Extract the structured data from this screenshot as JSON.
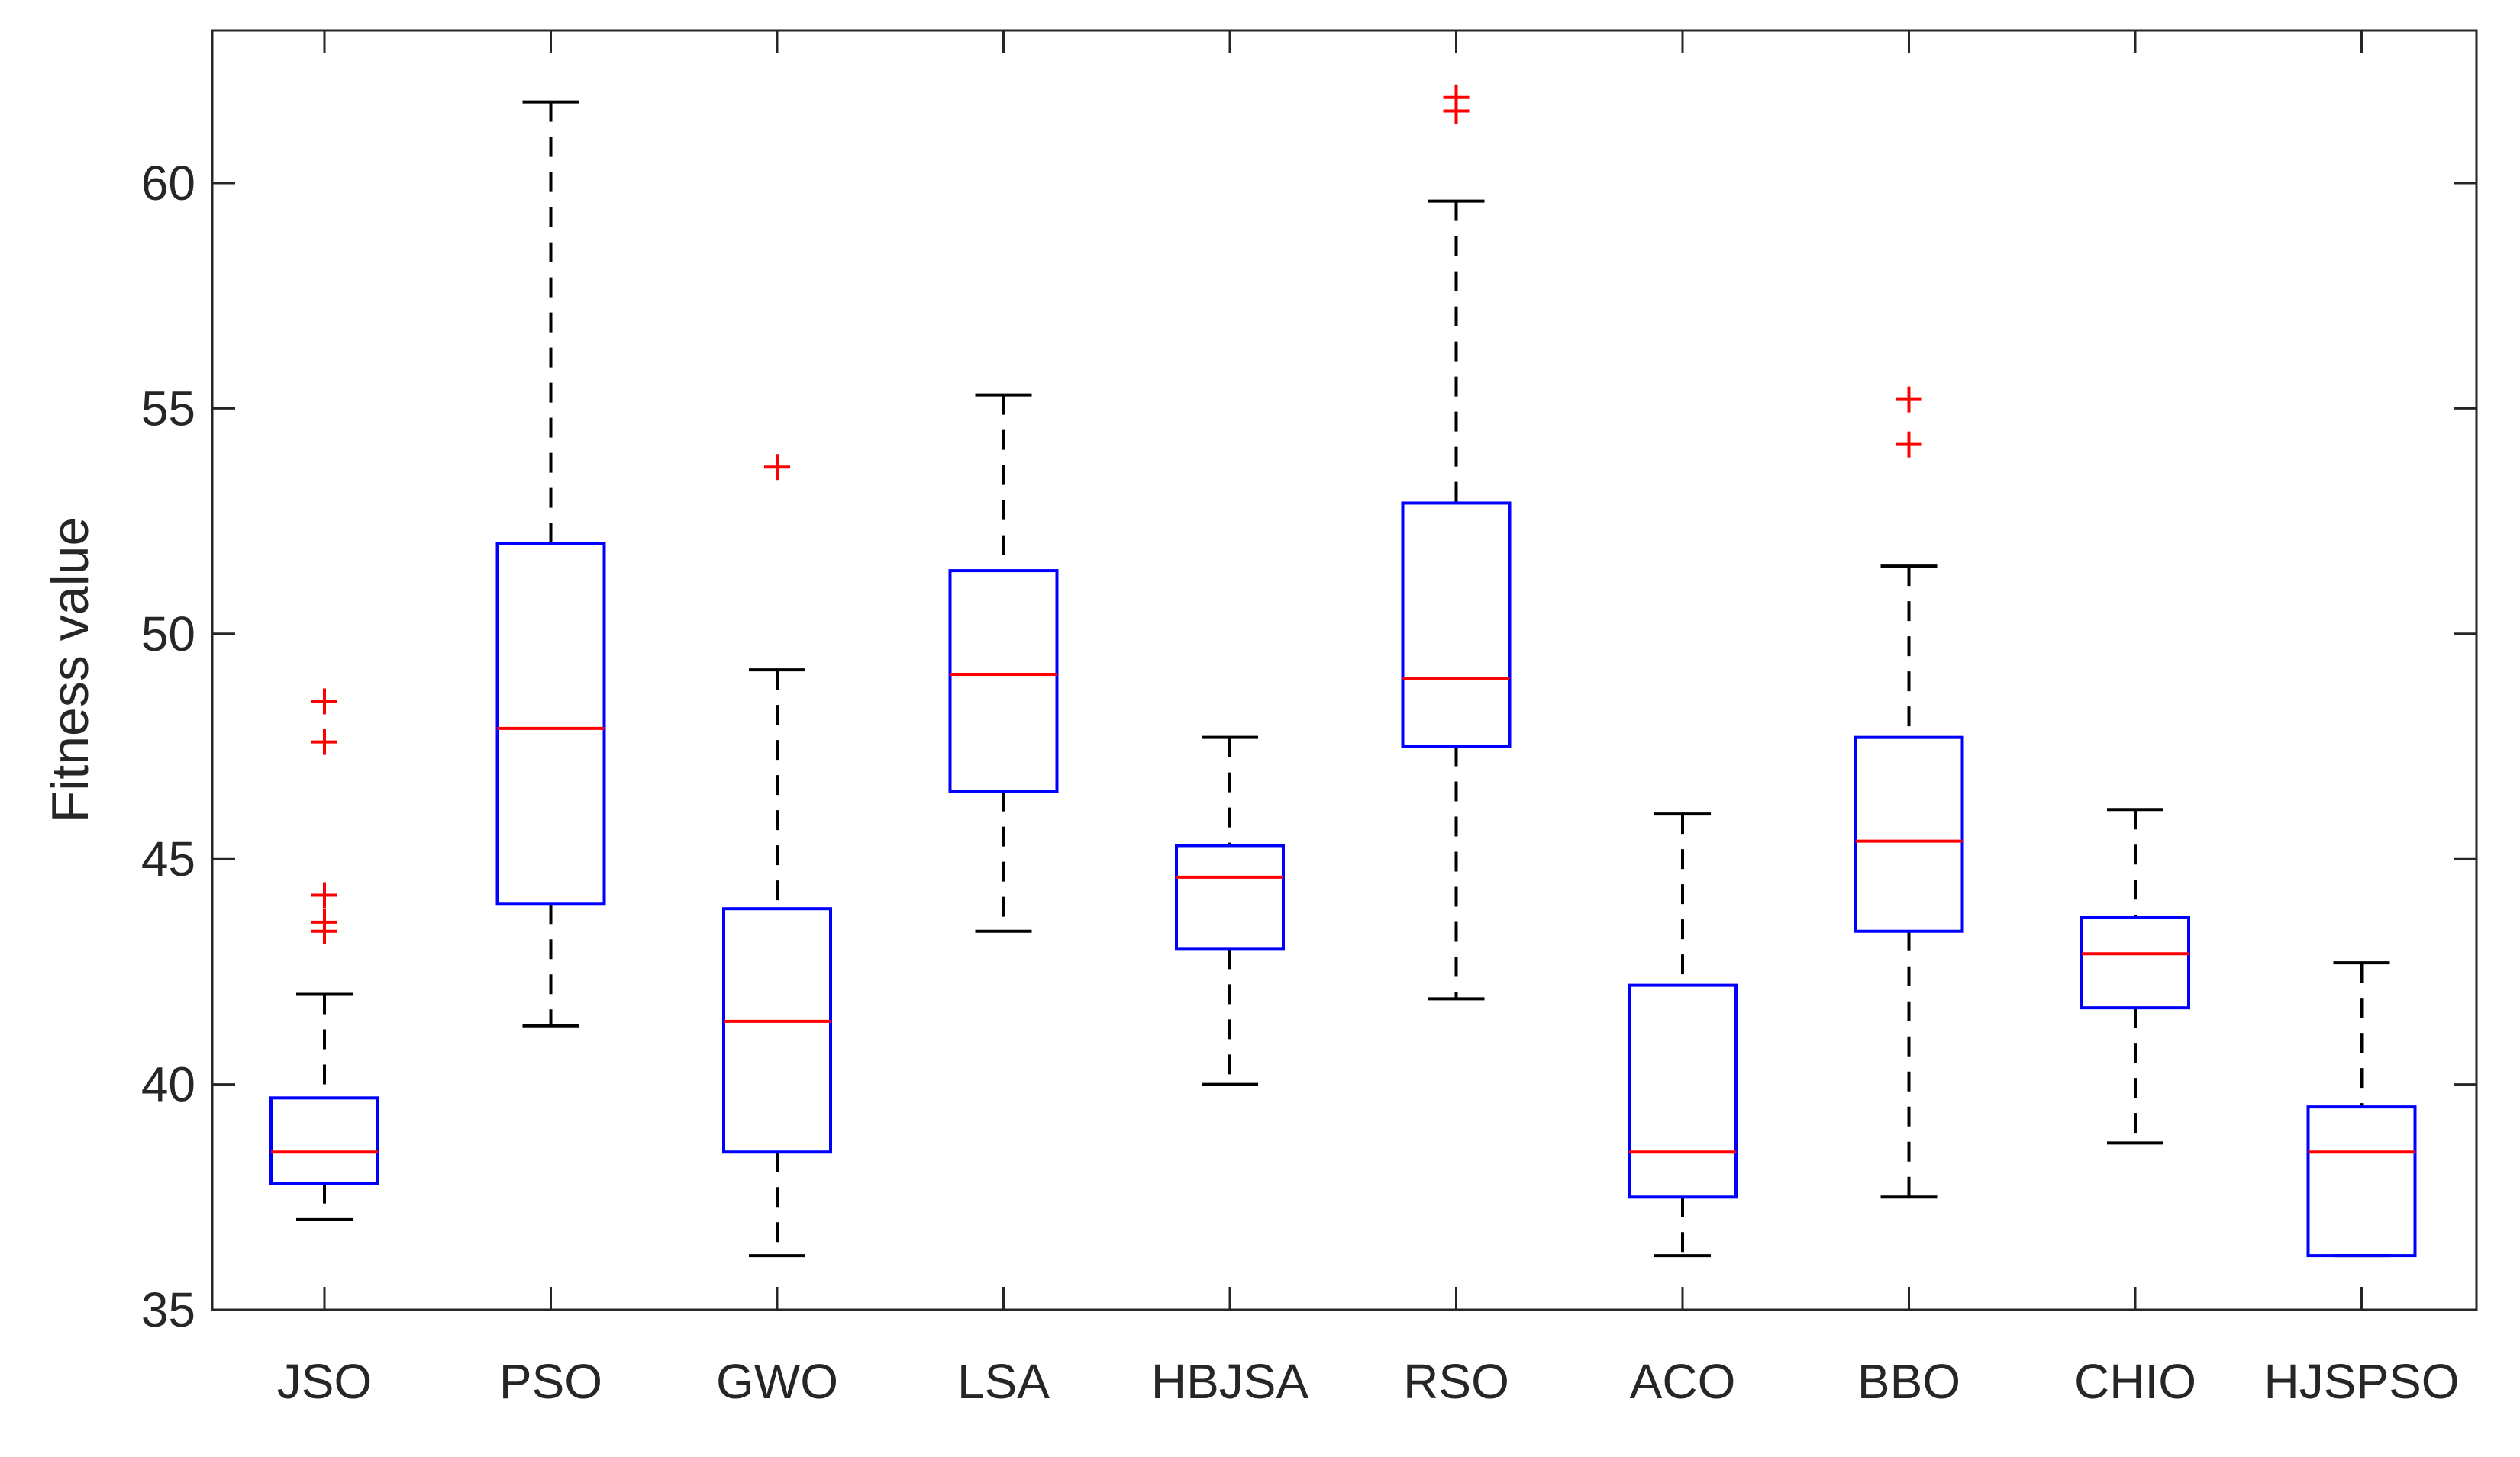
{
  "chart_data": {
    "type": "boxplot",
    "title": "",
    "xlabel": "",
    "ylabel": "Fitness value",
    "ylim": [
      35,
      63
    ],
    "yticks": [
      35,
      40,
      45,
      50,
      55,
      60
    ],
    "grid": false,
    "colors": {
      "box": "#0000ff",
      "median": "#ff0000",
      "whisker": "#000000",
      "outlier": "#ff0000",
      "axis": "#262626"
    },
    "categories": [
      "JSO",
      "PSO",
      "GWO",
      "LSA",
      "HBJSA",
      "RSO",
      "ACO",
      "BBO",
      "CHIO",
      "HJSPSO"
    ],
    "series": [
      {
        "name": "JSO",
        "min": 37.0,
        "q1": 37.8,
        "median": 38.5,
        "q3": 39.7,
        "max": 42.0,
        "outliers": [
          43.4,
          43.6,
          44.2,
          47.6,
          48.5
        ]
      },
      {
        "name": "PSO",
        "min": 41.3,
        "q1": 44.0,
        "median": 47.9,
        "q3": 52.0,
        "max": 61.8,
        "outliers": []
      },
      {
        "name": "GWO",
        "min": 36.2,
        "q1": 38.5,
        "median": 41.4,
        "q3": 43.9,
        "max": 49.2,
        "outliers": [
          53.7
        ]
      },
      {
        "name": "LSA",
        "min": 43.4,
        "q1": 46.5,
        "median": 49.1,
        "q3": 51.4,
        "max": 55.3,
        "outliers": []
      },
      {
        "name": "HBJSA",
        "min": 40.0,
        "q1": 43.0,
        "median": 44.6,
        "q3": 45.3,
        "max": 47.7,
        "outliers": []
      },
      {
        "name": "RSO",
        "min": 41.9,
        "q1": 47.5,
        "median": 49.0,
        "q3": 52.9,
        "max": 59.6,
        "outliers": [
          61.6,
          61.9
        ]
      },
      {
        "name": "ACO",
        "min": 36.2,
        "q1": 37.5,
        "median": 38.5,
        "q3": 42.2,
        "max": 46.0,
        "outliers": []
      },
      {
        "name": "BBO",
        "min": 37.5,
        "q1": 43.4,
        "median": 45.4,
        "q3": 47.7,
        "max": 51.5,
        "outliers": [
          54.2,
          55.2
        ]
      },
      {
        "name": "CHIO",
        "min": 38.7,
        "q1": 41.7,
        "median": 42.9,
        "q3": 43.7,
        "max": 46.1,
        "outliers": []
      },
      {
        "name": "HJSPSO",
        "min": 36.2,
        "q1": 36.2,
        "median": 38.5,
        "q3": 39.5,
        "max": 42.7,
        "outliers": []
      }
    ]
  }
}
